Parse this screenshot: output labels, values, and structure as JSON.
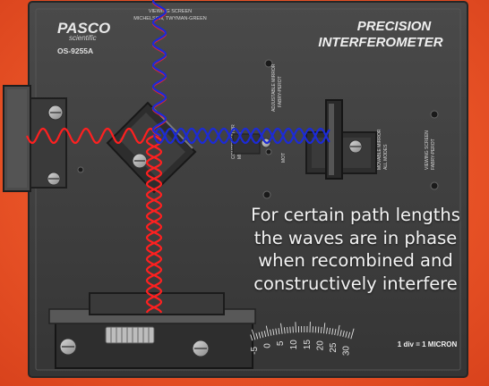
{
  "brand": {
    "name": "PASCO",
    "sub": "scientific",
    "model": "OS-9255A"
  },
  "panel": {
    "title_line1": "PRECISION",
    "title_line2": "INTERFEROMETER"
  },
  "mode_labels": {
    "viewing_screen_top": "VIEWING SCREEN",
    "michelson_twyman": "MICHELSON, TWYMAN-GREEN",
    "adjustable_mirror": "ADJUSTABLE MIRROR",
    "fabry_perot": "FABRY-PEROT",
    "compensator": "COMPENSATOR",
    "michelson": "MICHELSON",
    "movable_mirror": "MOVABLE MIRROR",
    "all_modes": "ALL MODES",
    "viewing_screen_right": "VIEWING SCREEN",
    "fabry_perot_right": "FABRY-PEROT",
    "motor_short": "MOT"
  },
  "scale": {
    "ticks": [
      "-5",
      "0",
      "5",
      "10",
      "15",
      "20",
      "25",
      "30"
    ],
    "note": "1 div = 1 MICRON"
  },
  "caption": [
    "For certain path lengths",
    "the waves are in phase",
    "when recombined and",
    "constructively interfere"
  ],
  "colors": {
    "red_wave": "#ff2020",
    "blue_wave": "#1c2bd6",
    "background": "#e8552a",
    "panel": "#3d3d3d"
  }
}
